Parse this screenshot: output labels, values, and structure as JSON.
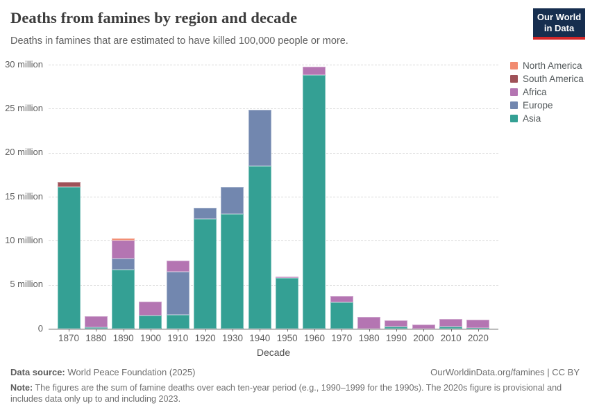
{
  "header": {
    "title": "Deaths from famines by region and decade",
    "subtitle": "Deaths in famines that are estimated to have killed 100,000 people or more.",
    "logo_line1": "Our World",
    "logo_line2": "in Data",
    "logo_bg": "#162e4f",
    "logo_accent": "#d32729"
  },
  "chart_data": {
    "type": "bar",
    "stacked": true,
    "title": "Deaths from famines by region and decade",
    "xlabel": "Decade",
    "ylabel": "",
    "unit": "million deaths",
    "ylim": [
      0,
      30
    ],
    "grid": "dashed-horizontal",
    "legend_position": "right",
    "categories": [
      "1870",
      "1880",
      "1890",
      "1900",
      "1910",
      "1920",
      "1930",
      "1940",
      "1950",
      "1960",
      "1970",
      "1980",
      "1990",
      "2000",
      "2010",
      "2020"
    ],
    "yticks": [
      0,
      5,
      10,
      15,
      20,
      25,
      30
    ],
    "ytick_labels": [
      "0",
      "5 million",
      "10 million",
      "15 million",
      "20 million",
      "25 million",
      "30 million"
    ],
    "series": [
      {
        "name": "Asia",
        "color": "#34A094",
        "values": [
          16.1,
          0.15,
          6.7,
          1.5,
          1.6,
          12.5,
          13.0,
          18.5,
          5.8,
          28.8,
          3.0,
          0,
          0.25,
          0,
          0.27,
          0.08
        ]
      },
      {
        "name": "Europe",
        "color": "#7287AF",
        "values": [
          0,
          0,
          1.3,
          0,
          4.9,
          1.25,
          3.1,
          6.4,
          0,
          0,
          0,
          0,
          0,
          0,
          0,
          0
        ]
      },
      {
        "name": "Africa",
        "color": "#B475B2",
        "values": [
          0,
          1.25,
          2.0,
          1.55,
          1.25,
          0,
          0,
          0,
          0.12,
          1.0,
          0.7,
          1.35,
          0.72,
          0.45,
          0.8,
          0.92
        ]
      },
      {
        "name": "South America",
        "color": "#9F5158",
        "values": [
          0.55,
          0,
          0,
          0,
          0,
          0,
          0,
          0,
          0,
          0,
          0,
          0,
          0,
          0,
          0,
          0
        ]
      },
      {
        "name": "North America",
        "color": "#F18B70",
        "values": [
          0,
          0,
          0.25,
          0,
          0,
          0,
          0,
          0,
          0,
          0,
          0,
          0,
          0,
          0,
          0,
          0
        ]
      }
    ],
    "legend_order_top_to_bottom": [
      "North America",
      "South America",
      "Africa",
      "Europe",
      "Asia"
    ]
  },
  "footer": {
    "data_source_label": "Data source:",
    "data_source_text": " World Peace Foundation (2025)",
    "link_text": "OurWorldinData.org/famines | CC BY",
    "note_label": "Note:",
    "note_text": " The figures are the sum of famine deaths over each ten-year period (e.g., 1990–1999 for the 1990s). The 2020s figure is provisional and includes data only up to and including 2023."
  }
}
